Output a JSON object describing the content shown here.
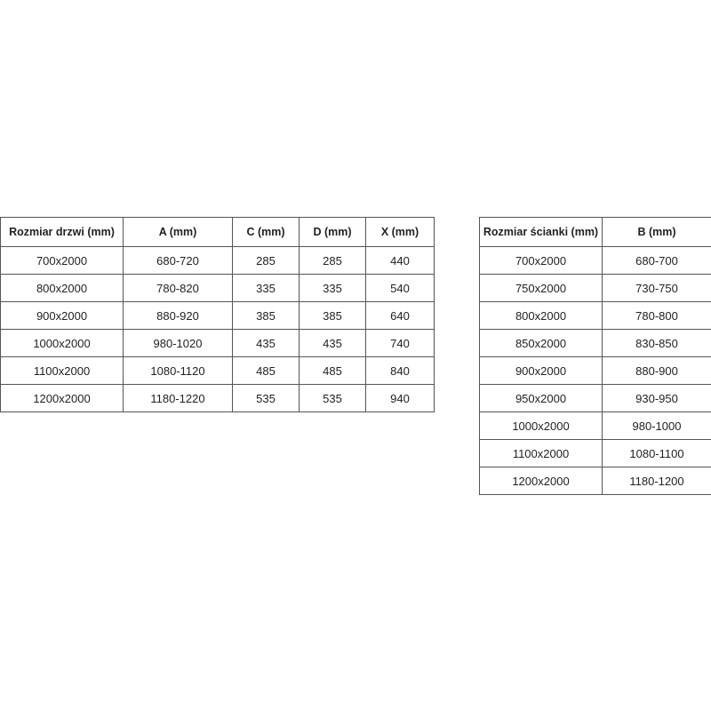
{
  "door_table": {
    "headers": [
      "Rozmiar drzwi (mm)",
      "A (mm)",
      "C (mm)",
      "D (mm)",
      "X (mm)"
    ],
    "rows": [
      [
        "700x2000",
        "680-720",
        "285",
        "285",
        "440"
      ],
      [
        "800x2000",
        "780-820",
        "335",
        "335",
        "540"
      ],
      [
        "900x2000",
        "880-920",
        "385",
        "385",
        "640"
      ],
      [
        "1000x2000",
        "980-1020",
        "435",
        "435",
        "740"
      ],
      [
        "1100x2000",
        "1080-1120",
        "485",
        "485",
        "840"
      ],
      [
        "1200x2000",
        "1180-1220",
        "535",
        "535",
        "940"
      ]
    ]
  },
  "wall_table": {
    "headers": [
      "Rozmiar ścianki (mm)",
      "B (mm)"
    ],
    "rows": [
      [
        "700x2000",
        "680-700"
      ],
      [
        "750x2000",
        "730-750"
      ],
      [
        "800x2000",
        "780-800"
      ],
      [
        "850x2000",
        "830-850"
      ],
      [
        "900x2000",
        "880-900"
      ],
      [
        "950x2000",
        "930-950"
      ],
      [
        "1000x2000",
        "980-1000"
      ],
      [
        "1100x2000",
        "1080-1100"
      ],
      [
        "1200x2000",
        "1180-1200"
      ]
    ]
  }
}
